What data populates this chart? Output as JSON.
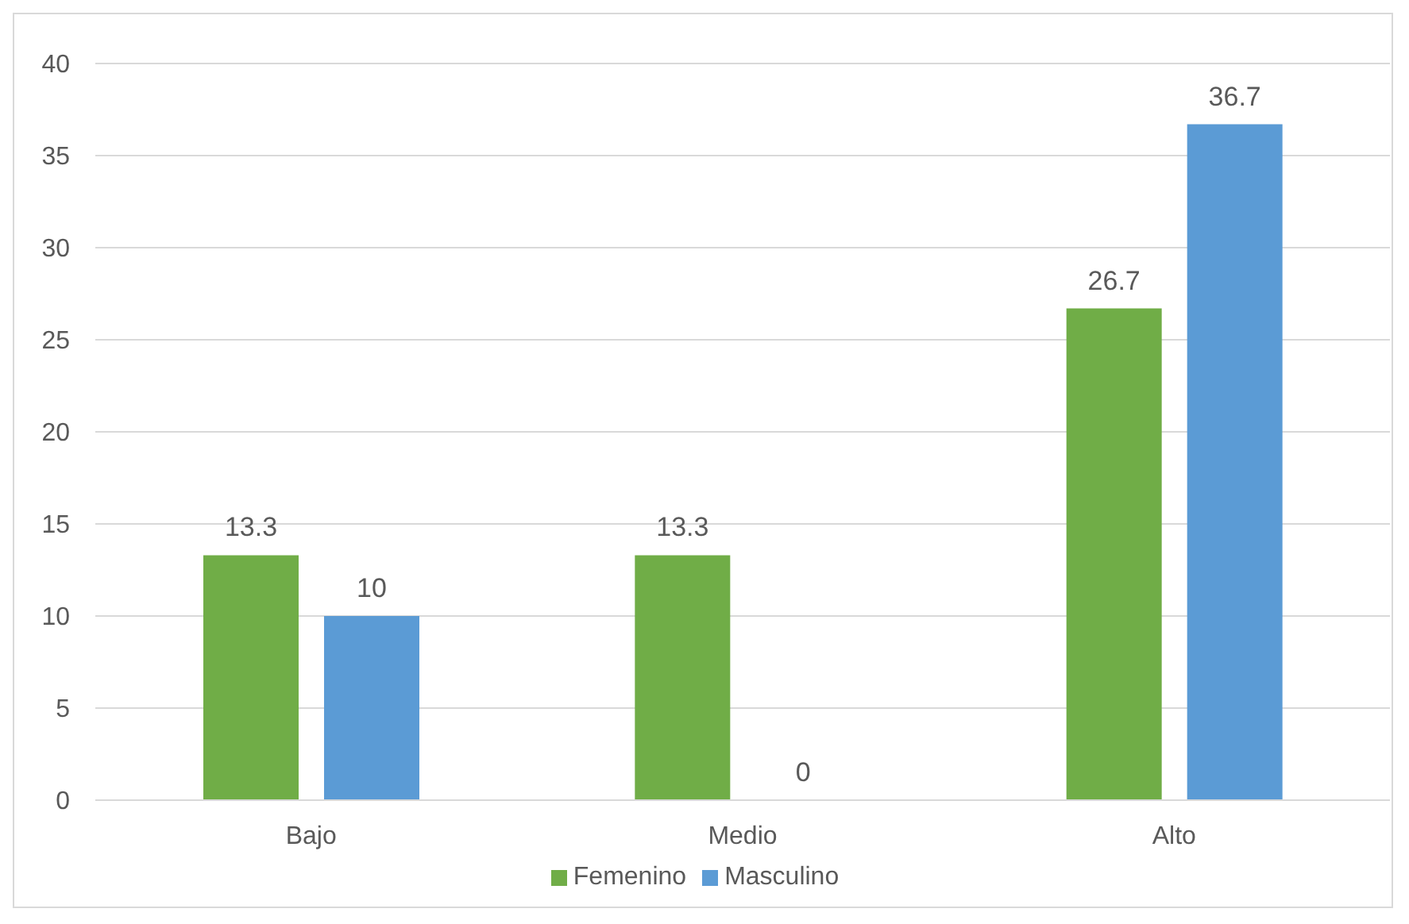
{
  "chart_data": {
    "type": "bar",
    "categories": [
      "Bajo",
      "Medio",
      "Alto"
    ],
    "series": [
      {
        "name": "Femenino",
        "color": "#70ad47",
        "values": [
          13.3,
          13.3,
          26.7
        ]
      },
      {
        "name": "Masculino",
        "color": "#5b9bd5",
        "values": [
          10,
          0,
          36.7
        ]
      }
    ],
    "ylim": [
      0,
      40
    ],
    "yticks": [
      0,
      5,
      10,
      15,
      20,
      25,
      30,
      35,
      40
    ],
    "grid": "y",
    "legend": "bottom",
    "data_labels": true
  }
}
